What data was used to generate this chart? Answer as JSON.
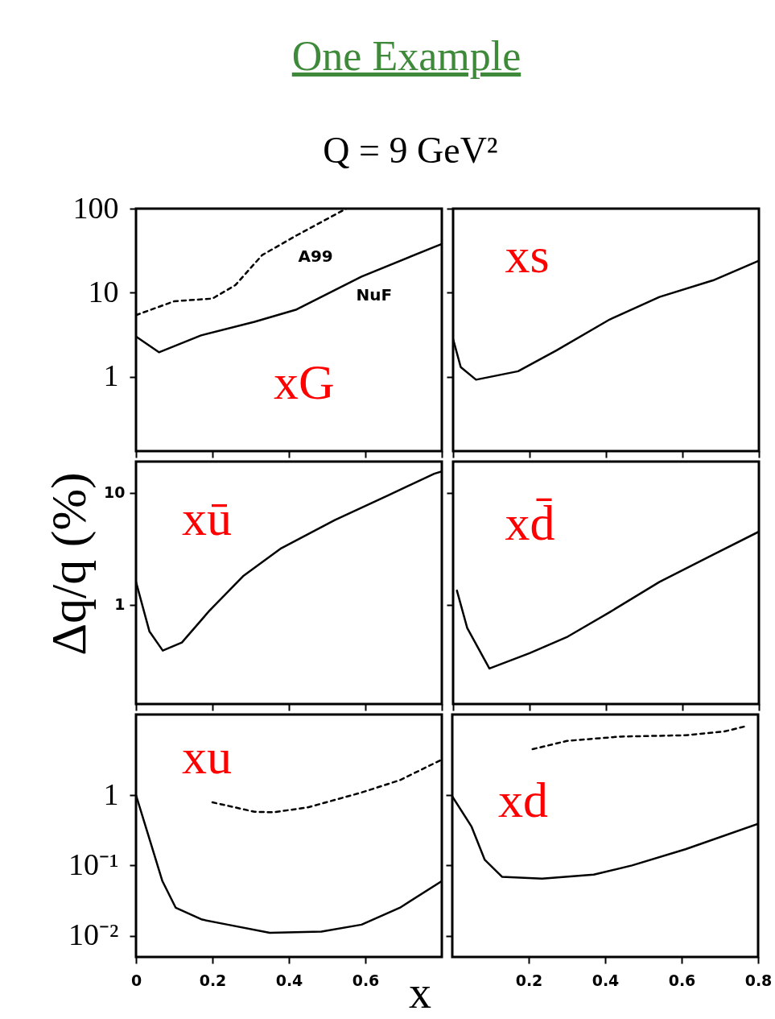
{
  "chart_data": [
    {
      "type": "line",
      "title": "One Example",
      "subtitle": "Q = 9 GeV²",
      "xlim": [
        0,
        0.8
      ],
      "ylim": [
        0.13,
        100
      ],
      "xticks": [
        0,
        0.2,
        0.4,
        0.6,
        0.8
      ],
      "yticks": [
        1,
        10,
        100
      ],
      "log": true,
      "tick_labels": "y",
      "series": [
        {
          "color": "#000000",
          "line_style": "dashed",
          "x": [
            0,
            0.1,
            0.2,
            0.26,
            0.33,
            0.42,
            0.55
          ],
          "values": [
            5.4,
            7.9,
            8.5,
            12.3,
            28,
            48,
            100
          ]
        },
        {
          "color": "#000000",
          "line_style": "solid",
          "x": [
            0,
            0.06,
            0.17,
            0.31,
            0.42,
            0.59,
            0.78,
            0.8
          ],
          "values": [
            3,
            1.95,
            3.1,
            4.5,
            6.3,
            15.5,
            35,
            38
          ]
        }
      ],
      "annotations": [
        "A99",
        "NuF",
        "xG"
      ]
    },
    {
      "type": "line",
      "xlim": [
        0,
        0.8
      ],
      "ylim": [
        0.13,
        100
      ],
      "xticks": [
        0,
        0.2,
        0.4,
        0.6,
        0.8
      ],
      "yticks": [
        1,
        10,
        100
      ],
      "log": true,
      "tick_labels": false,
      "series": [
        {
          "color": "#000000",
          "line_style": "solid",
          "x": [
            0,
            0.02,
            0.06,
            0.17,
            0.27,
            0.41,
            0.54,
            0.68,
            0.8
          ],
          "values": [
            2.8,
            1.3,
            0.92,
            1.16,
            2.05,
            4.8,
            8.9,
            14,
            24
          ]
        }
      ],
      "annotations": [
        "xs"
      ]
    },
    {
      "type": "line",
      "ylabel": "Δq/q  (%)",
      "xlim": [
        0,
        0.8
      ],
      "ylim": [
        0.13,
        19
      ],
      "xticks": [
        0,
        0.2,
        0.4,
        0.6,
        0.8
      ],
      "yticks": [
        1,
        10
      ],
      "log": true,
      "tick_labels": "y",
      "series": [
        {
          "color": "#000000",
          "line_style": "solid",
          "x": [
            0,
            0.035,
            0.07,
            0.12,
            0.19,
            0.28,
            0.38,
            0.52,
            0.66,
            0.78,
            0.8
          ],
          "values": [
            1.6,
            0.58,
            0.39,
            0.46,
            0.87,
            1.8,
            3.2,
            5.7,
            9.5,
            14.8,
            15.5
          ]
        }
      ],
      "annotations": [
        "xū"
      ]
    },
    {
      "type": "line",
      "xlim": [
        0,
        0.8
      ],
      "ylim": [
        0.13,
        19
      ],
      "xticks": [
        0,
        0.2,
        0.4,
        0.6,
        0.8
      ],
      "yticks": [
        1,
        10
      ],
      "log": true,
      "tick_labels": false,
      "series": [
        {
          "color": "#000000",
          "line_style": "solid",
          "x": [
            0.01,
            0.037,
            0.095,
            0.2,
            0.3,
            0.41,
            0.54,
            0.68,
            0.8
          ],
          "values": [
            1.34,
            0.62,
            0.27,
            0.37,
            0.52,
            0.86,
            1.6,
            2.8,
            4.5
          ]
        }
      ],
      "annotations": [
        "xd̄"
      ]
    },
    {
      "type": "line",
      "xlabel": "x",
      "xlim": [
        0,
        0.8
      ],
      "ylim": [
        0.005,
        14
      ],
      "xticks": [
        0,
        0.2,
        0.4,
        0.6
      ],
      "yticks": [
        {
          "value": 0.01,
          "label": "10⁻²"
        },
        {
          "value": 0.1,
          "label": "10⁻¹"
        },
        1
      ],
      "log": true,
      "series": [
        {
          "color": "#000000",
          "line_style": "dashed",
          "x": [
            0.2,
            0.31,
            0.36,
            0.45,
            0.59,
            0.69,
            0.8
          ],
          "values": [
            0.79,
            0.58,
            0.57,
            0.67,
            1.09,
            1.63,
            3.2
          ]
        },
        {
          "color": "#000000",
          "line_style": "solid",
          "x": [
            0,
            0.034,
            0.069,
            0.104,
            0.173,
            0.24,
            0.35,
            0.485,
            0.59,
            0.69,
            0.8
          ],
          "values": [
            1,
            0.25,
            0.06,
            0.025,
            0.017,
            0.0144,
            0.011,
            0.0115,
            0.0144,
            0.025,
            0.06
          ]
        }
      ],
      "annotations": [
        "xu"
      ]
    },
    {
      "type": "line",
      "xlim": [
        0,
        0.8
      ],
      "ylim": [
        0.005,
        14
      ],
      "xticks": [
        0.2,
        0.4,
        0.6,
        0.8
      ],
      "yticks": [
        0.01,
        0.1,
        1
      ],
      "log": true,
      "tick_labels": "x",
      "series": [
        {
          "color": "#000000",
          "line_style": "dashed",
          "x": [
            0.21,
            0.3,
            0.44,
            0.61,
            0.71,
            0.77
          ],
          "values": [
            4.5,
            5.9,
            6.8,
            7.1,
            8,
            9.6
          ]
        },
        {
          "color": "#000000",
          "line_style": "solid",
          "x": [
            0,
            0.05,
            0.085,
            0.13,
            0.235,
            0.37,
            0.47,
            0.61,
            0.8
          ],
          "values": [
            0.96,
            0.36,
            0.12,
            0.069,
            0.065,
            0.074,
            0.1,
            0.17,
            0.39
          ]
        }
      ],
      "annotations": [
        "xd"
      ]
    }
  ]
}
